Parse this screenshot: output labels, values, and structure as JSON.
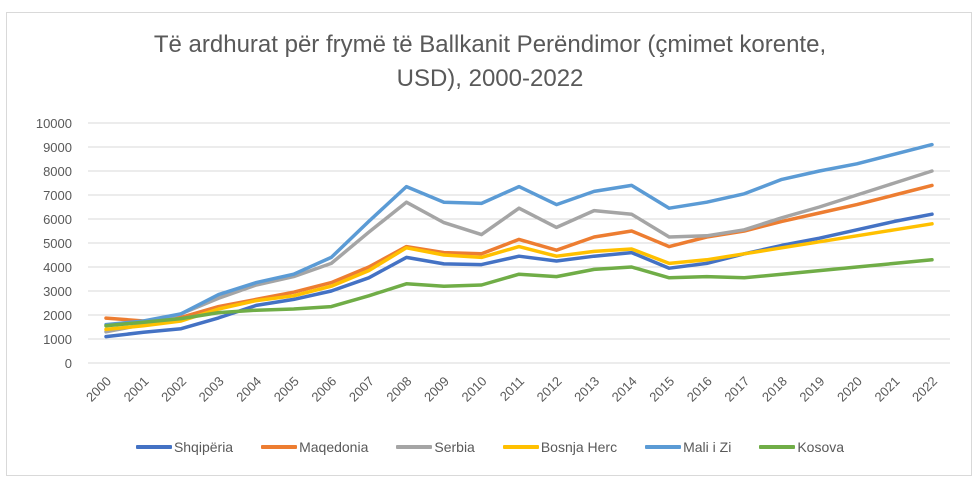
{
  "chart_data": {
    "type": "line",
    "title": "Të ardhurat për frymë të Ballkanit Perëndimor (çmimet korente, USD), 2000-2022",
    "title_lines": [
      "Të ardhurat për frymë të Ballkanit Perëndimor (çmimet korente,",
      "USD), 2000-2022"
    ],
    "xlabel": "",
    "ylabel": "",
    "ylim": [
      0,
      10000
    ],
    "yticks": [
      0,
      1000,
      2000,
      3000,
      4000,
      5000,
      6000,
      7000,
      8000,
      9000,
      10000
    ],
    "grid": true,
    "legend_position": "bottom",
    "categories": [
      "2000",
      "2001",
      "2002",
      "2003",
      "2004",
      "2005",
      "2006",
      "2007",
      "2008",
      "2009",
      "2010",
      "2011",
      "2012",
      "2013",
      "2014",
      "2015",
      "2016",
      "2017",
      "2018",
      "2019",
      "2020",
      "2021",
      "2022"
    ],
    "series": [
      {
        "name": "Shqipëria",
        "color": "#4472C4",
        "values": [
          1100,
          1280,
          1430,
          1880,
          2400,
          2650,
          3000,
          3550,
          4400,
          4130,
          4100,
          4450,
          4250,
          4450,
          4600,
          3950,
          4150,
          4550,
          4900,
          5200,
          5550,
          5900,
          6200
        ]
      },
      {
        "name": "Maqedonia",
        "color": "#ED7D31",
        "values": [
          1870,
          1750,
          1900,
          2350,
          2650,
          2950,
          3350,
          4000,
          4850,
          4600,
          4550,
          5150,
          4700,
          5250,
          5500,
          4850,
          5250,
          5500,
          5900,
          6250,
          6600,
          7000,
          7400
        ]
      },
      {
        "name": "Serbia",
        "color": "#A5A5A5",
        "values": [
          1300,
          1600,
          2050,
          2700,
          3250,
          3600,
          4150,
          5450,
          6700,
          5850,
          5350,
          6450,
          5650,
          6350,
          6200,
          5250,
          5300,
          5550,
          6050,
          6500,
          7000,
          7500,
          8000
        ]
      },
      {
        "name": "Bosnja Herc",
        "color": "#FFC000",
        "values": [
          1400,
          1550,
          1750,
          2250,
          2600,
          2800,
          3200,
          3850,
          4800,
          4500,
          4400,
          4850,
          4450,
          4650,
          4750,
          4150,
          4300,
          4550,
          4800,
          5050,
          5300,
          5550,
          5800
        ]
      },
      {
        "name": "Mali i Zi",
        "color": "#5B9BD5",
        "values": [
          1600,
          1750,
          2050,
          2850,
          3350,
          3700,
          4400,
          5900,
          7350,
          6700,
          6650,
          7350,
          6600,
          7150,
          7400,
          6450,
          6700,
          7050,
          7650,
          8000,
          8300,
          8700,
          9100
        ]
      },
      {
        "name": "Kosova",
        "color": "#70AD47",
        "values": [
          1550,
          1700,
          1850,
          2100,
          2200,
          2250,
          2350,
          2800,
          3300,
          3200,
          3250,
          3700,
          3600,
          3900,
          4000,
          3550,
          3600,
          3550,
          3700,
          3850,
          4000,
          4150,
          4300
        ]
      }
    ]
  },
  "legend": {
    "items": [
      {
        "label": "Shqipëria",
        "color": "#4472C4"
      },
      {
        "label": "Maqedonia",
        "color": "#ED7D31"
      },
      {
        "label": "Serbia",
        "color": "#A5A5A5"
      },
      {
        "label": "Bosnja Herc",
        "color": "#FFC000"
      },
      {
        "label": "Mali i Zi",
        "color": "#5B9BD5"
      },
      {
        "label": "Kosova",
        "color": "#70AD47"
      }
    ]
  }
}
